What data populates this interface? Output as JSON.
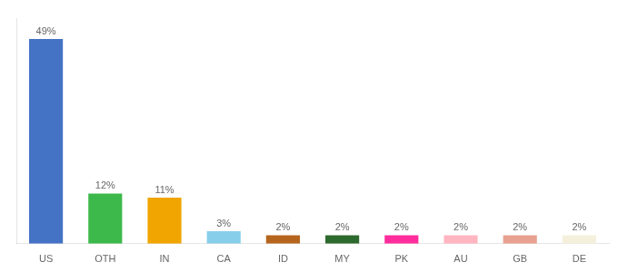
{
  "chart_data": {
    "type": "bar",
    "categories": [
      "US",
      "OTH",
      "IN",
      "CA",
      "ID",
      "MY",
      "PK",
      "AU",
      "GB",
      "DE"
    ],
    "values": [
      49,
      12,
      11,
      3,
      2,
      2,
      2,
      2,
      2,
      2
    ],
    "value_labels": [
      "49%",
      "12%",
      "11%",
      "3%",
      "2%",
      "2%",
      "2%",
      "2%",
      "2%",
      "2%"
    ],
    "colors": [
      "#4472c4",
      "#3cb94a",
      "#f0a500",
      "#87ceeb",
      "#b5651d",
      "#2d6a2d",
      "#ff2d9b",
      "#ffb6c1",
      "#e8a090",
      "#f5f0dc"
    ],
    "ylim": [
      0,
      54
    ],
    "grid": false,
    "data_labels": true,
    "tick_labels": "x"
  }
}
